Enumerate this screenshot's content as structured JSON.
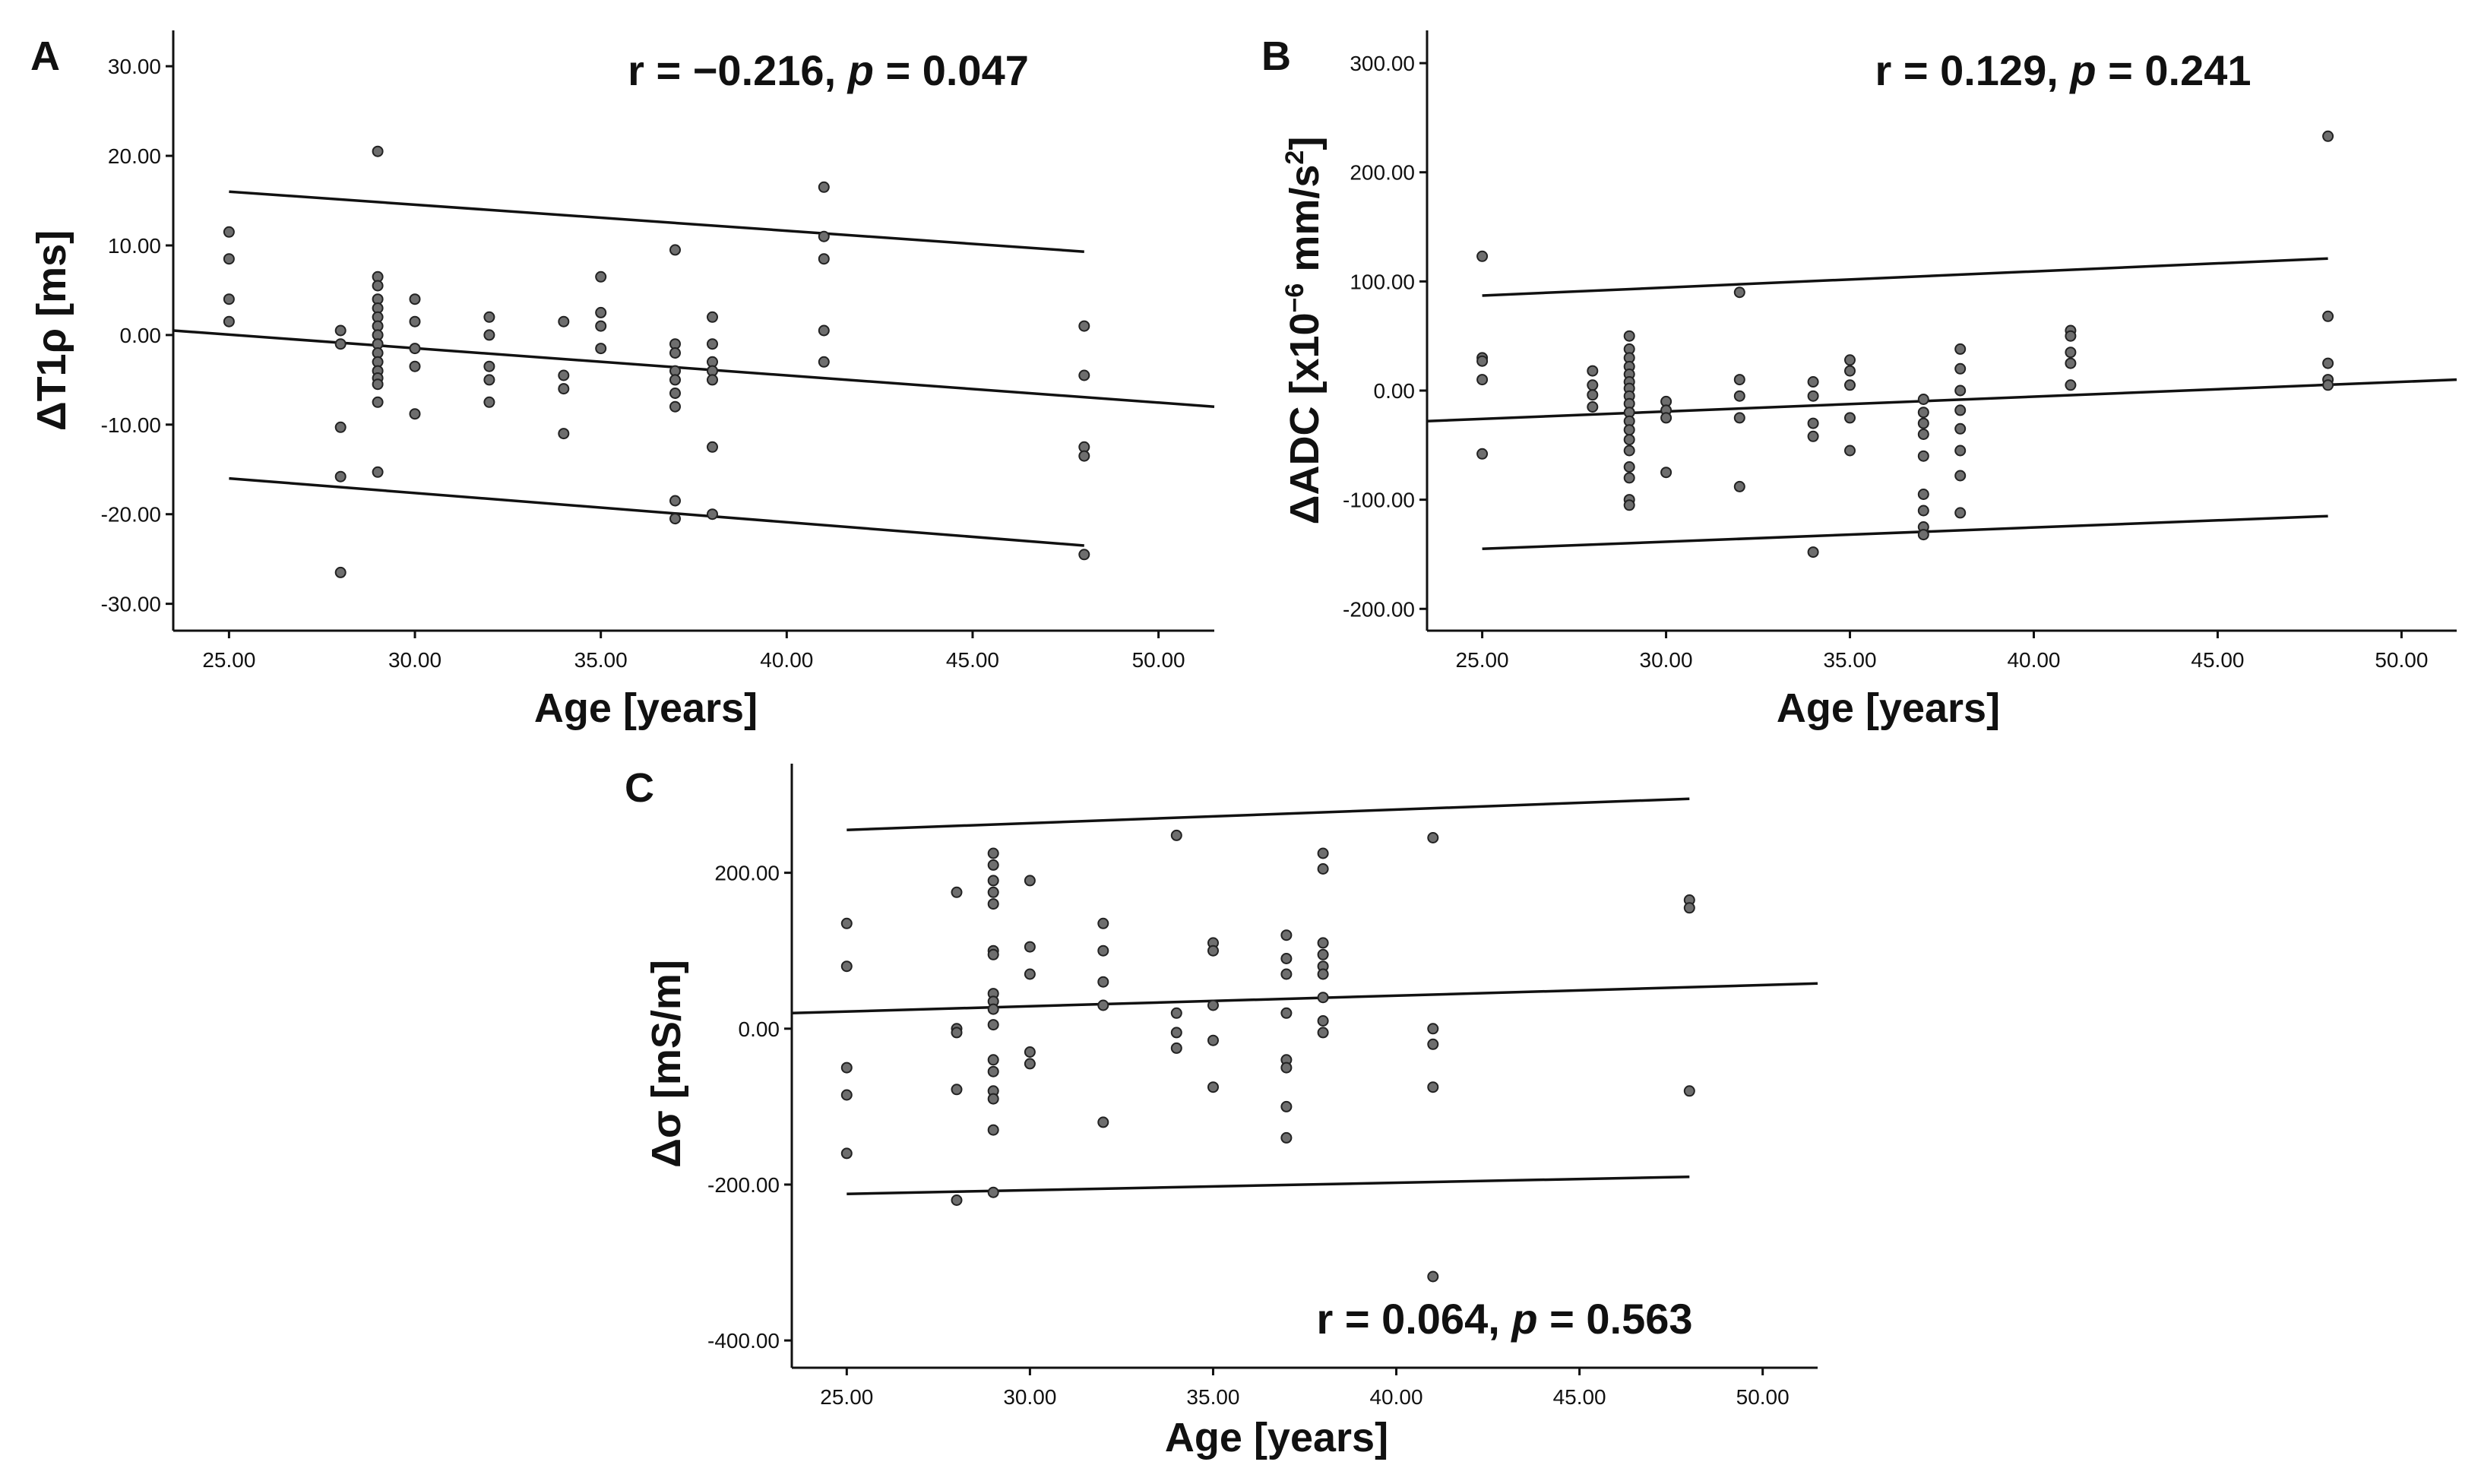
{
  "chart_data": [
    {
      "panel": "A",
      "type": "scatter",
      "stat_r": "r = −0.216, ",
      "stat_p_label": "p",
      "stat_p_value": " = 0.047",
      "xlabel": "Age [years]",
      "ylabel": "ΔT1ρ [ms]",
      "xlim": [
        23.5,
        51.5
      ],
      "ylim": [
        -33,
        34
      ],
      "xticks": [
        25,
        30,
        35,
        40,
        45,
        50
      ],
      "xtick_labels": [
        "25.00",
        "30.00",
        "35.00",
        "40.00",
        "45.00",
        "50.00"
      ],
      "yticks": [
        -30,
        -20,
        -10,
        0,
        10,
        20,
        30
      ],
      "ytick_labels": [
        "-30.00",
        "-20.00",
        "-10.00",
        "0.00",
        "10.00",
        "20.00",
        "30.00"
      ],
      "fit_line": {
        "x": [
          23.5,
          51.5
        ],
        "y": [
          0.5,
          -8.0
        ]
      },
      "ci_upper": {
        "x": [
          25,
          48
        ],
        "y": [
          16,
          9.3
        ]
      },
      "ci_lower": {
        "x": [
          25,
          48
        ],
        "y": [
          -16,
          -23.5
        ]
      },
      "points": [
        [
          25,
          11.5
        ],
        [
          25,
          8.5
        ],
        [
          25,
          4
        ],
        [
          25,
          1.5
        ],
        [
          28,
          0.5
        ],
        [
          28,
          -1
        ],
        [
          28,
          -10.3
        ],
        [
          28,
          -15.8
        ],
        [
          28,
          -26.5
        ],
        [
          29,
          20.5
        ],
        [
          29,
          6.5
        ],
        [
          29,
          5.5
        ],
        [
          29,
          4
        ],
        [
          29,
          3
        ],
        [
          29,
          2
        ],
        [
          29,
          1
        ],
        [
          29,
          0
        ],
        [
          29,
          -1
        ],
        [
          29,
          -2
        ],
        [
          29,
          -3
        ],
        [
          29,
          -4
        ],
        [
          29,
          -4.8
        ],
        [
          29,
          -5.5
        ],
        [
          29,
          -7.5
        ],
        [
          29,
          -15.3
        ],
        [
          30,
          4
        ],
        [
          30,
          1.5
        ],
        [
          30,
          -1.5
        ],
        [
          30,
          -3.5
        ],
        [
          30,
          -8.8
        ],
        [
          32,
          2
        ],
        [
          32,
          0
        ],
        [
          32,
          -3.5
        ],
        [
          32,
          -5
        ],
        [
          32,
          -7.5
        ],
        [
          34,
          1.5
        ],
        [
          34,
          -4.5
        ],
        [
          34,
          -6
        ],
        [
          34,
          -11
        ],
        [
          35,
          6.5
        ],
        [
          35,
          2.5
        ],
        [
          35,
          1
        ],
        [
          35,
          -1.5
        ],
        [
          37,
          9.5
        ],
        [
          37,
          -1
        ],
        [
          37,
          -2
        ],
        [
          37,
          -4
        ],
        [
          37,
          -5
        ],
        [
          37,
          -6.5
        ],
        [
          37,
          -8
        ],
        [
          37,
          -18.5
        ],
        [
          37,
          -20.5
        ],
        [
          38,
          2
        ],
        [
          38,
          -1
        ],
        [
          38,
          -3
        ],
        [
          38,
          -4
        ],
        [
          38,
          -5
        ],
        [
          38,
          -12.5
        ],
        [
          38,
          -20
        ],
        [
          41,
          16.5
        ],
        [
          41,
          11
        ],
        [
          41,
          8.5
        ],
        [
          41,
          0.5
        ],
        [
          41,
          -3
        ],
        [
          48,
          1
        ],
        [
          48,
          -4.5
        ],
        [
          48,
          -12.5
        ],
        [
          48,
          -13.5
        ],
        [
          48,
          -24.5
        ]
      ]
    },
    {
      "panel": "B",
      "type": "scatter",
      "stat_r": "r = 0.129, ",
      "stat_p_label": "p",
      "stat_p_value": " = 0.241",
      "xlabel": "Age [years]",
      "ylabel_main": "ΔADC [x10",
      "ylabel_sup1": "−6",
      "ylabel_mid": " mm/s",
      "ylabel_sup2": "2",
      "ylabel_end": "]",
      "xlim": [
        23.5,
        51.5
      ],
      "ylim": [
        -220,
        330
      ],
      "xticks": [
        25,
        30,
        35,
        40,
        45,
        50
      ],
      "xtick_labels": [
        "25.00",
        "30.00",
        "35.00",
        "40.00",
        "45.00",
        "50.00"
      ],
      "yticks": [
        -200,
        -100,
        0,
        100,
        200,
        300
      ],
      "ytick_labels": [
        "-200.00",
        "-100.00",
        "0.00",
        "100.00",
        "200.00",
        "300.00"
      ],
      "fit_line": {
        "x": [
          23.5,
          51.5
        ],
        "y": [
          -28,
          10
        ]
      },
      "ci_upper": {
        "x": [
          25,
          48
        ],
        "y": [
          87,
          121
        ]
      },
      "ci_lower": {
        "x": [
          25,
          48
        ],
        "y": [
          -145,
          -115
        ]
      },
      "points": [
        [
          25,
          123
        ],
        [
          25,
          30
        ],
        [
          25,
          27
        ],
        [
          25,
          10
        ],
        [
          25,
          -58
        ],
        [
          28,
          18
        ],
        [
          28,
          5
        ],
        [
          28,
          -4
        ],
        [
          28,
          -15
        ],
        [
          29,
          50
        ],
        [
          29,
          38
        ],
        [
          29,
          30
        ],
        [
          29,
          22
        ],
        [
          29,
          15
        ],
        [
          29,
          8
        ],
        [
          29,
          2
        ],
        [
          29,
          -5
        ],
        [
          29,
          -12
        ],
        [
          29,
          -20
        ],
        [
          29,
          -28
        ],
        [
          29,
          -36
        ],
        [
          29,
          -45
        ],
        [
          29,
          -55
        ],
        [
          29,
          -70
        ],
        [
          29,
          -80
        ],
        [
          29,
          -100
        ],
        [
          29,
          -105
        ],
        [
          30,
          -10
        ],
        [
          30,
          -18
        ],
        [
          30,
          -25
        ],
        [
          30,
          -75
        ],
        [
          32,
          90
        ],
        [
          32,
          10
        ],
        [
          32,
          -5
        ],
        [
          32,
          -25
        ],
        [
          32,
          -88
        ],
        [
          34,
          8
        ],
        [
          34,
          -5
        ],
        [
          34,
          -30
        ],
        [
          34,
          -42
        ],
        [
          34,
          -148
        ],
        [
          35,
          28
        ],
        [
          35,
          18
        ],
        [
          35,
          5
        ],
        [
          35,
          -25
        ],
        [
          35,
          -55
        ],
        [
          37,
          -8
        ],
        [
          37,
          -20
        ],
        [
          37,
          -30
        ],
        [
          37,
          -40
        ],
        [
          37,
          -60
        ],
        [
          37,
          -95
        ],
        [
          37,
          -110
        ],
        [
          37,
          -125
        ],
        [
          37,
          -132
        ],
        [
          38,
          38
        ],
        [
          38,
          20
        ],
        [
          38,
          0
        ],
        [
          38,
          -18
        ],
        [
          38,
          -35
        ],
        [
          38,
          -55
        ],
        [
          38,
          -78
        ],
        [
          38,
          -112
        ],
        [
          41,
          55
        ],
        [
          41,
          50
        ],
        [
          41,
          35
        ],
        [
          41,
          25
        ],
        [
          41,
          5
        ],
        [
          48,
          233
        ],
        [
          48,
          68
        ],
        [
          48,
          25
        ],
        [
          48,
          10
        ],
        [
          48,
          5
        ]
      ]
    },
    {
      "panel": "C",
      "type": "scatter",
      "stat_r": "r = 0.064, ",
      "stat_p_label": "p",
      "stat_p_value": " = 0.563",
      "xlabel": "Age [years]",
      "ylabel": "Δσ [mS/m]",
      "xlim": [
        23.5,
        51.5
      ],
      "ylim": [
        -435,
        340
      ],
      "xticks": [
        25,
        30,
        35,
        40,
        45,
        50
      ],
      "xtick_labels": [
        "25.00",
        "30.00",
        "35.00",
        "40.00",
        "45.00",
        "50.00"
      ],
      "yticks": [
        -400,
        -200,
        0,
        200
      ],
      "ytick_labels": [
        "-400.00",
        "-200.00",
        "0.00",
        "200.00"
      ],
      "fit_line": {
        "x": [
          23.5,
          51.5
        ],
        "y": [
          20,
          58
        ]
      },
      "ci_upper": {
        "x": [
          25,
          48
        ],
        "y": [
          255,
          295
        ]
      },
      "ci_lower": {
        "x": [
          25,
          48
        ],
        "y": [
          -212,
          -190
        ]
      },
      "points": [
        [
          25,
          135
        ],
        [
          25,
          80
        ],
        [
          25,
          -50
        ],
        [
          25,
          -85
        ],
        [
          25,
          -160
        ],
        [
          28,
          175
        ],
        [
          28,
          0
        ],
        [
          28,
          -5
        ],
        [
          28,
          -78
        ],
        [
          28,
          -220
        ],
        [
          29,
          225
        ],
        [
          29,
          210
        ],
        [
          29,
          190
        ],
        [
          29,
          175
        ],
        [
          29,
          160
        ],
        [
          29,
          100
        ],
        [
          29,
          95
        ],
        [
          29,
          45
        ],
        [
          29,
          35
        ],
        [
          29,
          25
        ],
        [
          29,
          5
        ],
        [
          29,
          -40
        ],
        [
          29,
          -55
        ],
        [
          29,
          -80
        ],
        [
          29,
          -90
        ],
        [
          29,
          -130
        ],
        [
          29,
          -210
        ],
        [
          30,
          190
        ],
        [
          30,
          105
        ],
        [
          30,
          70
        ],
        [
          30,
          -30
        ],
        [
          30,
          -45
        ],
        [
          32,
          135
        ],
        [
          32,
          100
        ],
        [
          32,
          60
        ],
        [
          32,
          30
        ],
        [
          32,
          -120
        ],
        [
          34,
          248
        ],
        [
          34,
          20
        ],
        [
          34,
          -5
        ],
        [
          34,
          -25
        ],
        [
          35,
          110
        ],
        [
          35,
          100
        ],
        [
          35,
          30
        ],
        [
          35,
          -15
        ],
        [
          35,
          -75
        ],
        [
          37,
          120
        ],
        [
          37,
          90
        ],
        [
          37,
          70
        ],
        [
          37,
          20
        ],
        [
          37,
          -40
        ],
        [
          37,
          -50
        ],
        [
          37,
          -100
        ],
        [
          37,
          -140
        ],
        [
          38,
          225
        ],
        [
          38,
          205
        ],
        [
          38,
          110
        ],
        [
          38,
          95
        ],
        [
          38,
          80
        ],
        [
          38,
          70
        ],
        [
          38,
          40
        ],
        [
          38,
          10
        ],
        [
          38,
          -5
        ],
        [
          41,
          245
        ],
        [
          41,
          0
        ],
        [
          41,
          -20
        ],
        [
          41,
          -75
        ],
        [
          41,
          -318
        ],
        [
          48,
          165
        ],
        [
          48,
          155
        ],
        [
          48,
          -80
        ]
      ]
    }
  ]
}
